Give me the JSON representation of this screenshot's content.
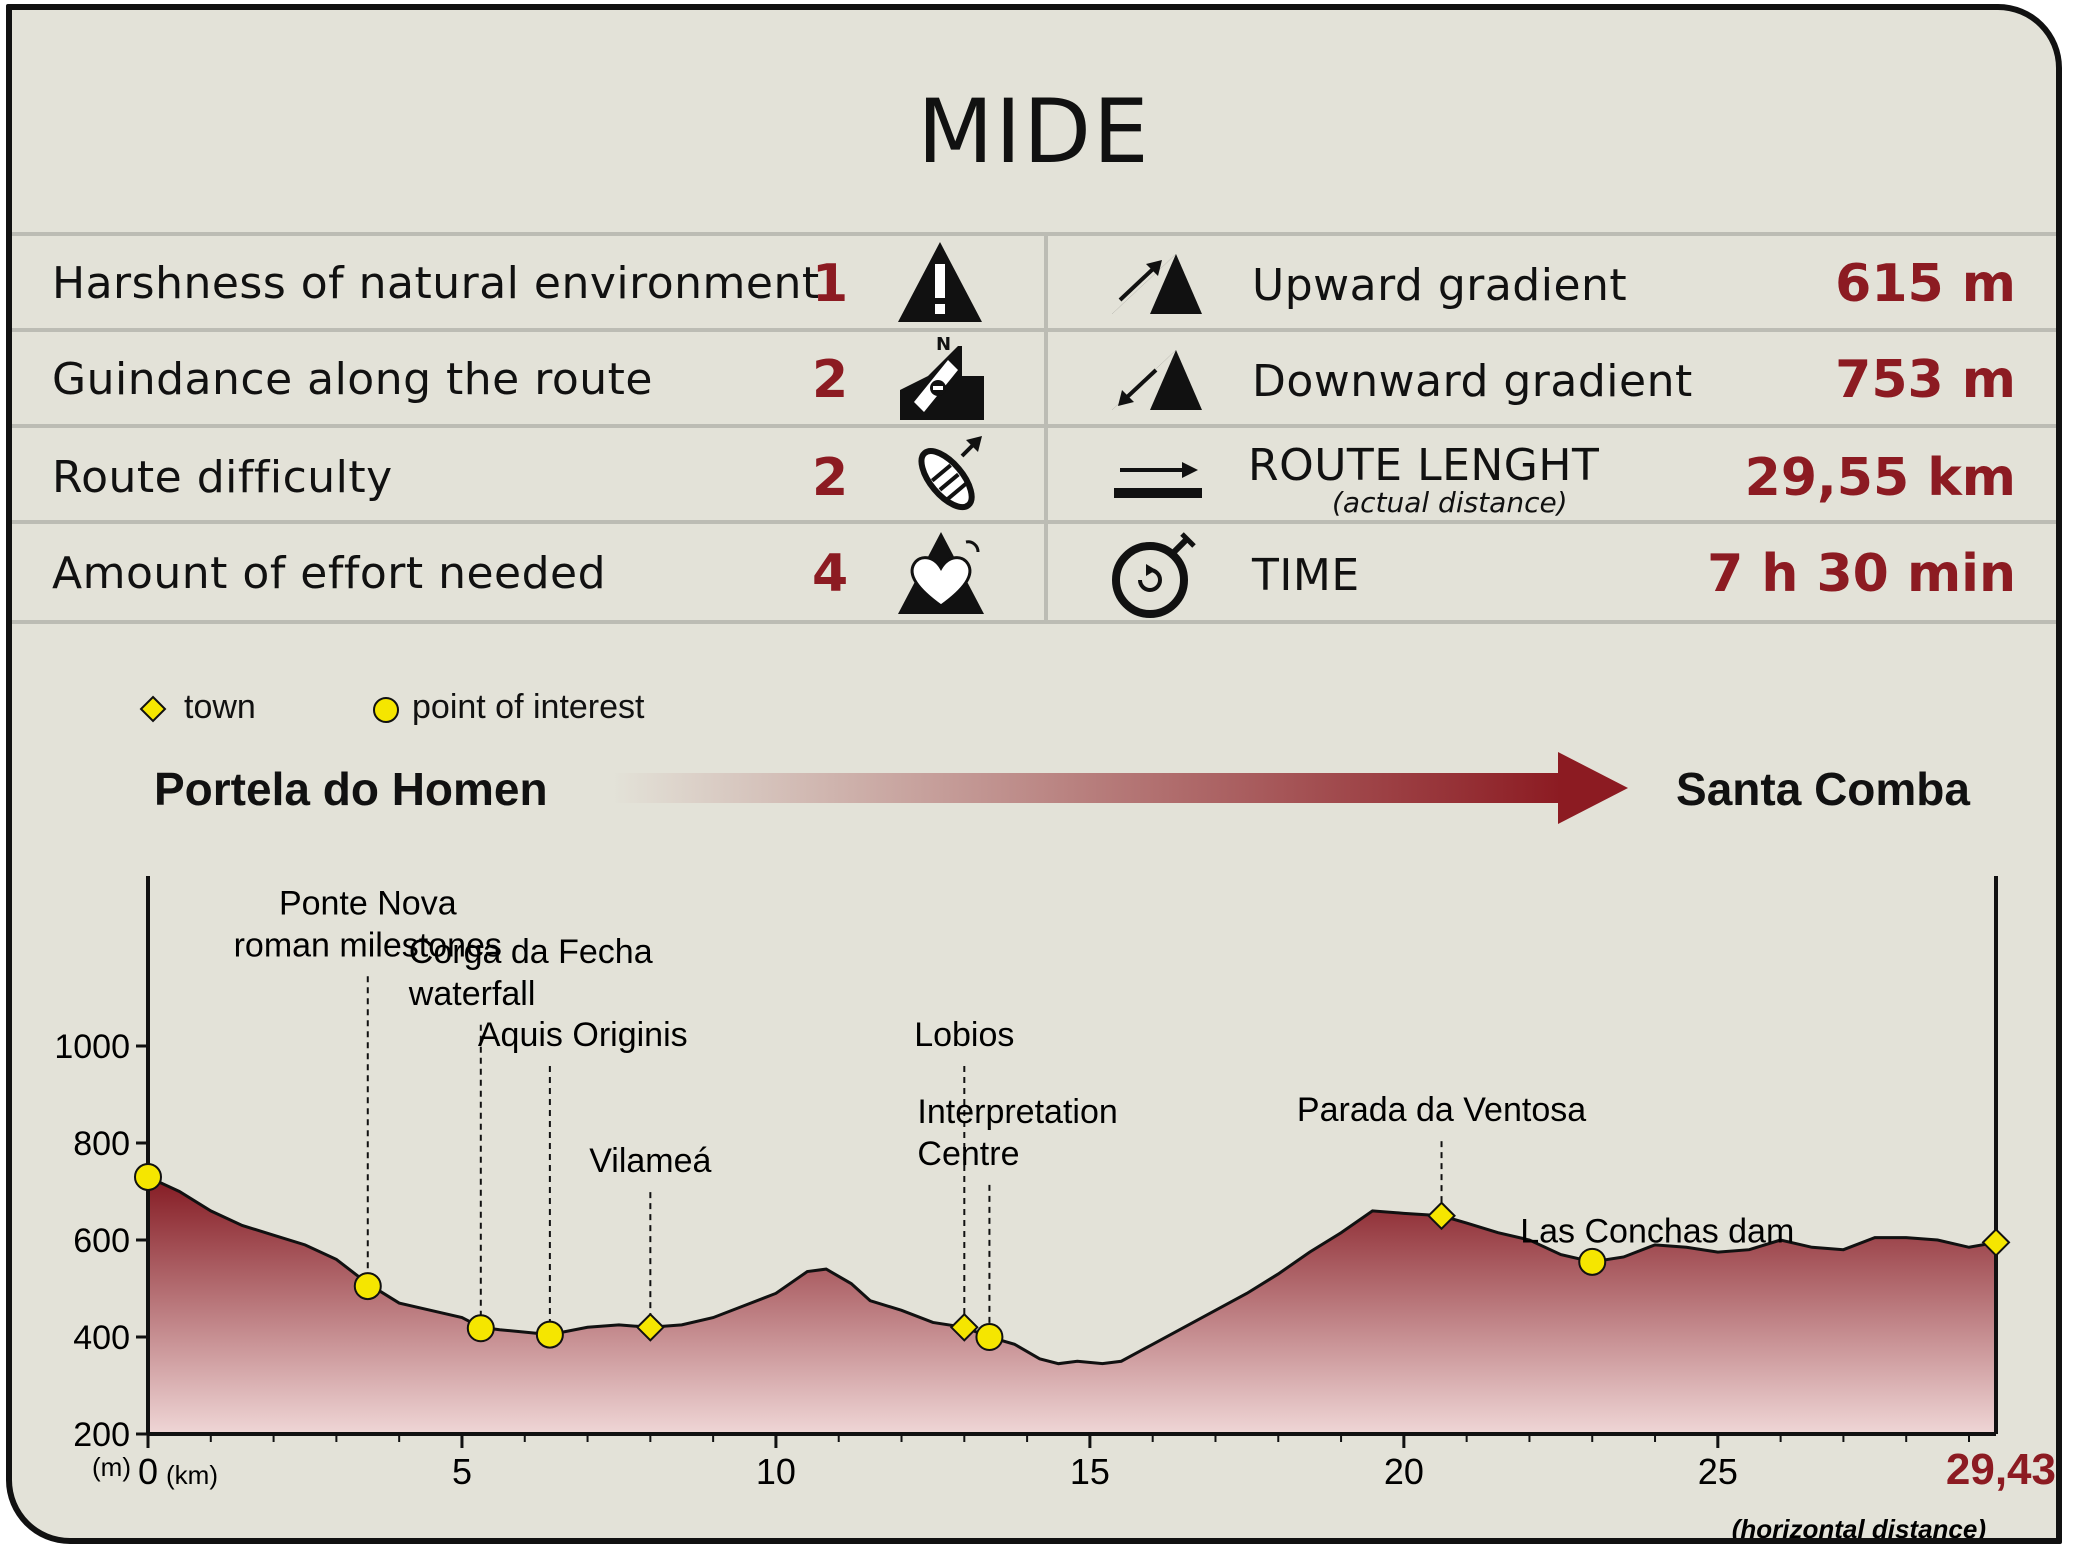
{
  "header": {
    "title": "MIDE"
  },
  "mide_left": [
    {
      "label": "Harshness of natural environment",
      "value": "1",
      "icon": "warning-mountain-icon"
    },
    {
      "label": "Guindance along the route",
      "value": "2",
      "icon": "signpost-compass-icon"
    },
    {
      "label": "Route difficulty",
      "value": "2",
      "icon": "footprint-icon"
    },
    {
      "label": "Amount of effort needed",
      "value": "4",
      "icon": "heart-mountain-icon"
    }
  ],
  "mide_right": [
    {
      "label": "Upward gradient",
      "sublabel": "",
      "value": "615 m",
      "icon": "upward-gradient-icon"
    },
    {
      "label": "Downward gradient",
      "sublabel": "",
      "value": "753 m",
      "icon": "downward-gradient-icon"
    },
    {
      "label": "ROUTE LENGHT",
      "sublabel": "(actual distance)",
      "value": "29,55 km",
      "icon": "route-length-arrow-icon"
    },
    {
      "label": "TIME",
      "sublabel": "",
      "value": "7 h 30 min",
      "icon": "stopwatch-icon"
    }
  ],
  "legend": {
    "town": "town",
    "poi": "point of interest"
  },
  "route": {
    "start": "Portela do Homen",
    "end": "Santa Comba"
  },
  "colors": {
    "accent": "#8c1b22",
    "marker": "#f5e600",
    "background": "#e3e2d8"
  },
  "chart_data": {
    "type": "area",
    "title": "",
    "xlabel": "(km)",
    "ylabel": "(m)",
    "xlim": [
      0,
      29.43
    ],
    "ylim": [
      200,
      1200
    ],
    "x_ticks": [
      0,
      5,
      10,
      15,
      20,
      25
    ],
    "y_ticks": [
      200,
      400,
      600,
      800,
      1000
    ],
    "x_end_label": "29,43",
    "x_end_note": "(horizontal distance)",
    "profile": [
      [
        0,
        730
      ],
      [
        0.5,
        700
      ],
      [
        1.0,
        660
      ],
      [
        1.5,
        630
      ],
      [
        2.0,
        610
      ],
      [
        2.5,
        590
      ],
      [
        3.0,
        560
      ],
      [
        3.5,
        510
      ],
      [
        4.0,
        470
      ],
      [
        4.5,
        455
      ],
      [
        5.0,
        440
      ],
      [
        5.3,
        420
      ],
      [
        5.6,
        415
      ],
      [
        6.0,
        410
      ],
      [
        6.4,
        405
      ],
      [
        7.0,
        420
      ],
      [
        7.5,
        425
      ],
      [
        8.0,
        420
      ],
      [
        8.5,
        425
      ],
      [
        9.0,
        440
      ],
      [
        9.5,
        465
      ],
      [
        10.0,
        490
      ],
      [
        10.5,
        535
      ],
      [
        10.8,
        540
      ],
      [
        11.2,
        510
      ],
      [
        11.5,
        475
      ],
      [
        12.0,
        455
      ],
      [
        12.5,
        430
      ],
      [
        13.0,
        420
      ],
      [
        13.4,
        400
      ],
      [
        13.8,
        385
      ],
      [
        14.2,
        355
      ],
      [
        14.5,
        345
      ],
      [
        14.8,
        350
      ],
      [
        15.2,
        345
      ],
      [
        15.5,
        350
      ],
      [
        16.0,
        385
      ],
      [
        16.5,
        420
      ],
      [
        17.0,
        455
      ],
      [
        17.5,
        490
      ],
      [
        18.0,
        530
      ],
      [
        18.5,
        575
      ],
      [
        19.0,
        615
      ],
      [
        19.5,
        660
      ],
      [
        20.0,
        655
      ],
      [
        20.6,
        650
      ],
      [
        21.0,
        635
      ],
      [
        21.5,
        615
      ],
      [
        22.0,
        600
      ],
      [
        22.5,
        570
      ],
      [
        23.0,
        555
      ],
      [
        23.5,
        565
      ],
      [
        24.0,
        590
      ],
      [
        24.5,
        585
      ],
      [
        25.0,
        575
      ],
      [
        25.5,
        580
      ],
      [
        26.0,
        600
      ],
      [
        26.5,
        585
      ],
      [
        27.0,
        580
      ],
      [
        27.5,
        605
      ],
      [
        28.0,
        605
      ],
      [
        28.5,
        600
      ],
      [
        29.0,
        585
      ],
      [
        29.43,
        595
      ]
    ],
    "markers": [
      {
        "type": "poi",
        "x": 0,
        "y": 730,
        "label": []
      },
      {
        "type": "poi",
        "x": 3.5,
        "y": 505,
        "label": [
          "Ponte Nova",
          "roman milestones"
        ],
        "label_y": 1185,
        "label_align": "middle"
      },
      {
        "type": "poi",
        "x": 5.3,
        "y": 418,
        "label": [
          "Corga da Fecha",
          "waterfall"
        ],
        "label_y": 1085,
        "label_align": "start"
      },
      {
        "type": "poi",
        "x": 6.4,
        "y": 405,
        "label": [
          "Aquis Originis"
        ],
        "label_y": 1000,
        "label_align": "start"
      },
      {
        "type": "town",
        "x": 8.0,
        "y": 420,
        "label": [
          "Vilameá"
        ],
        "label_y": 740,
        "label_align": "middle"
      },
      {
        "type": "town",
        "x": 13.0,
        "y": 420,
        "label": [
          "Lobios"
        ],
        "label_y": 1000,
        "label_align": "middle"
      },
      {
        "type": "poi",
        "x": 13.4,
        "y": 400,
        "label": [
          "Interpretation",
          "Centre"
        ],
        "label_y": 755,
        "label_align": "start"
      },
      {
        "type": "town",
        "x": 20.6,
        "y": 650,
        "label": [
          "Parada da Ventosa"
        ],
        "label_y": 845,
        "label_align": "middle"
      },
      {
        "type": "poi",
        "x": 23.0,
        "y": 555,
        "label": [
          "Las Conchas dam"
        ],
        "label_y": 595,
        "label_align": "start"
      },
      {
        "type": "town",
        "x": 29.43,
        "y": 595,
        "label": []
      }
    ]
  }
}
